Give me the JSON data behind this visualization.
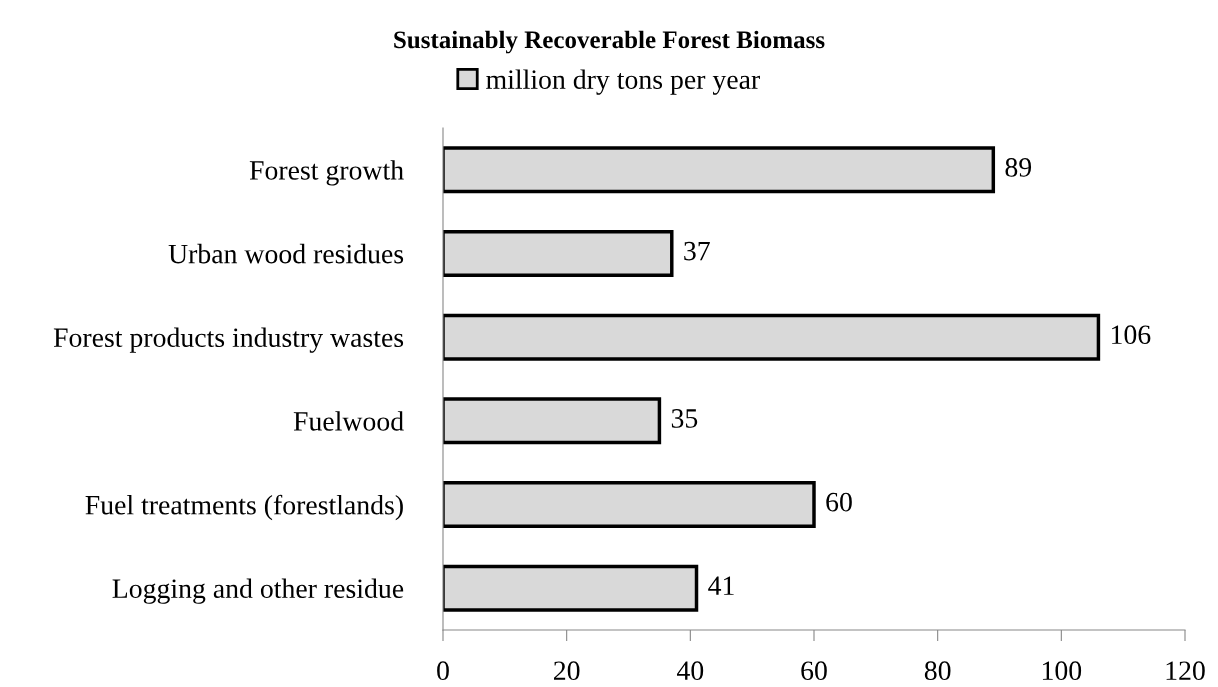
{
  "chart_data": {
    "type": "bar",
    "orientation": "horizontal",
    "title": "Sustainably Recoverable Forest Biomass",
    "categories": [
      "Forest growth",
      "Urban wood residues",
      "Forest products industry wastes",
      "Fuelwood",
      "Fuel treatments (forestlands)",
      "Logging and other residue"
    ],
    "series": [
      {
        "name": "million dry tons per year",
        "color": "#d9d9d9",
        "values": [
          89,
          37,
          106,
          35,
          60,
          41
        ]
      }
    ],
    "xlim": [
      0,
      120
    ],
    "xticks": [
      0,
      20,
      40,
      60,
      80,
      100,
      120
    ],
    "grid": false,
    "legend": "top",
    "data_labels": true
  }
}
